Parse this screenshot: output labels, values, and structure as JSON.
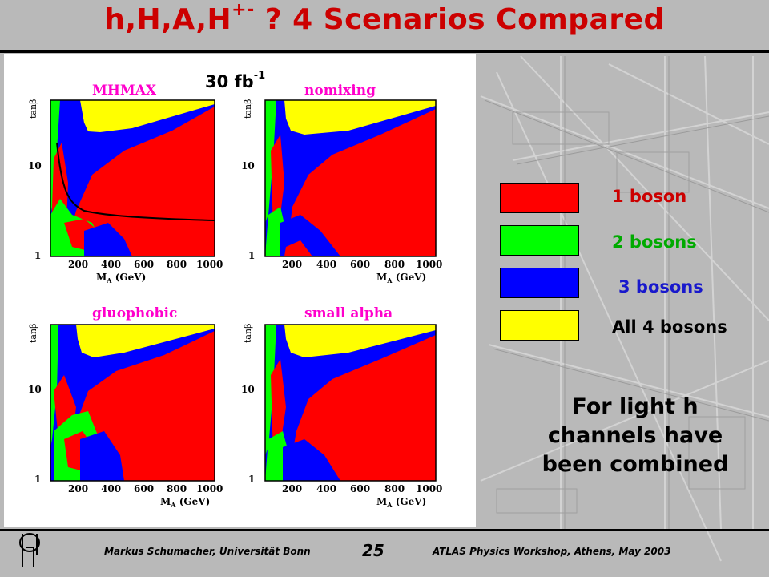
{
  "header": {
    "title_main": "h,H,A,H",
    "title_sup": "+-",
    "title_rest": " ? 4 Scenarios Compared"
  },
  "figure": {
    "luminosity": "30 fb",
    "luminosity_sup": "-1",
    "panels": [
      {
        "name": "MHMAX",
        "ylabel": "tanβ",
        "xlabel": "M",
        "xlabel_sub": "A",
        "xlabel_unit": " (GeV)"
      },
      {
        "name": "nomixing",
        "ylabel": "tanβ",
        "xlabel": "M",
        "xlabel_sub": "A",
        "xlabel_unit": " (GeV)"
      },
      {
        "name": "gluophobic",
        "ylabel": "tanβ",
        "xlabel": "M",
        "xlabel_sub": "A",
        "xlabel_unit": " (GeV)"
      },
      {
        "name": "small alpha",
        "ylabel": "tanβ",
        "xlabel": "M",
        "xlabel_sub": "A",
        "xlabel_unit": " (GeV)"
      }
    ],
    "x_ticks": [
      "200",
      "400",
      "600",
      "800",
      "1000"
    ],
    "y_ticks": [
      "10",
      "1"
    ]
  },
  "legend": [
    {
      "label": "1 boson",
      "color": "#ff0000",
      "text_color": "#cc0000"
    },
    {
      "label": "2 bosons",
      "color": "#00ff00",
      "text_color": "#00aa00"
    },
    {
      "label": "3 bosons",
      "color": "#0000ff",
      "text_color": "#1818cc"
    },
    {
      "label": "All 4 bosons",
      "color": "#ffff00",
      "text_color": "#000000"
    }
  ],
  "note": {
    "line1": "For light h",
    "line2": "channels have",
    "line3": "been combined"
  },
  "footer": {
    "author": "Markus Schumacher,  Universität Bonn",
    "page": "25",
    "event": "ATLAS Physics Workshop, Athens, May 2003"
  },
  "colors": {
    "title": "#cc0000",
    "panel_title": "#ff00cc",
    "red": "#ff0000",
    "green": "#00ff00",
    "blue": "#0000ff",
    "yellow": "#ffff00"
  }
}
